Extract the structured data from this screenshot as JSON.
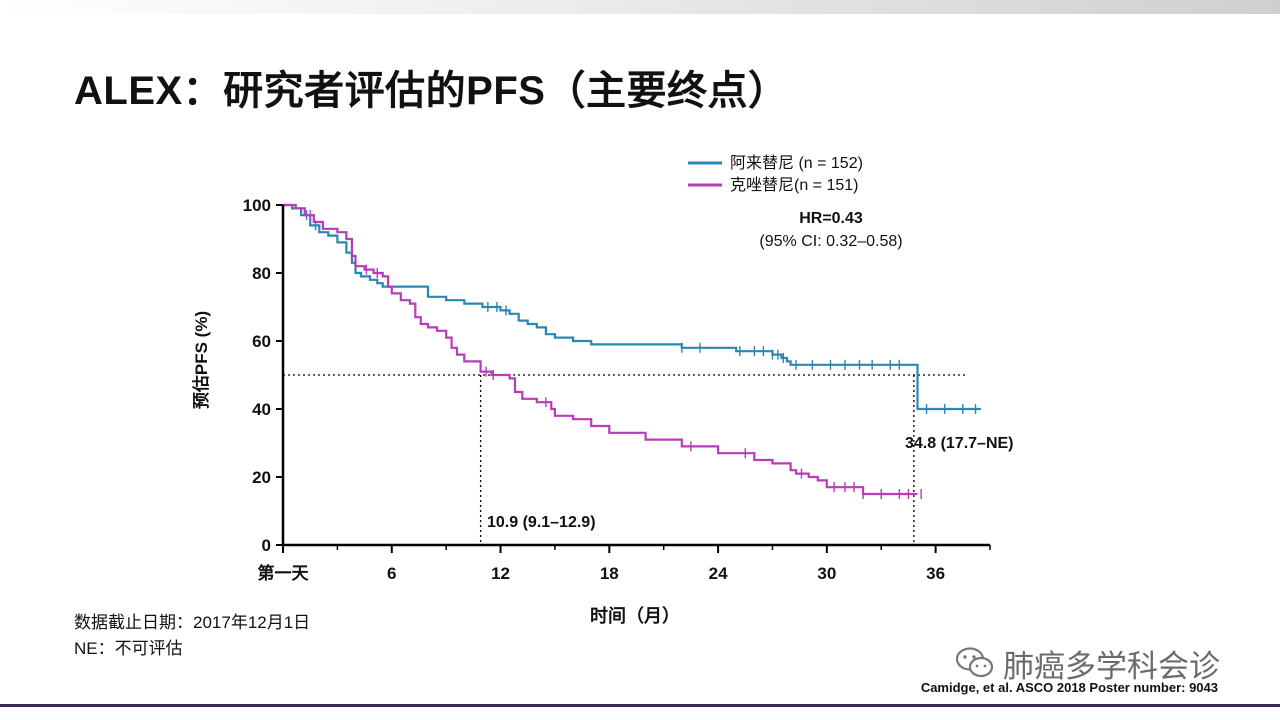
{
  "slide": {
    "title": "ALEX：研究者评估的PFS（主要终点）",
    "footnote_cutoff": "数据截止日期：2017年12月1日",
    "footnote_ne": "NE：不可评估",
    "citation": "Camidge, et al. ASCO 2018 Poster number: 9043",
    "watermark": "肺癌多学科会诊"
  },
  "chart_data": {
    "type": "line",
    "step": true,
    "xlabel": "时间（月）",
    "ylabel": "预估PFS (%)",
    "xlim": [
      0,
      39
    ],
    "ylim": [
      0,
      100
    ],
    "xticks": [
      {
        "value": 0,
        "label": "第一天"
      },
      {
        "value": 6,
        "label": "6"
      },
      {
        "value": 12,
        "label": "12"
      },
      {
        "value": 18,
        "label": "18"
      },
      {
        "value": 24,
        "label": "24"
      },
      {
        "value": 30,
        "label": "30"
      },
      {
        "value": 36,
        "label": "36"
      }
    ],
    "yticks": [
      0,
      20,
      40,
      60,
      80,
      100
    ],
    "legend_position": "top-right",
    "annotations": {
      "hr": "HR=0.43",
      "ci": "(95% CI: 0.32–0.58)",
      "median_crizotinib": "10.9 (9.1–12.9)",
      "median_alectinib": "34.8 (17.7–NE)"
    },
    "reference_lines": {
      "median_y": 50,
      "median_x_crizotinib": 10.9,
      "median_x_alectinib": 34.8
    },
    "series": [
      {
        "name": "阿来替尼 (n = 152)",
        "color": "#2a87b5",
        "x": [
          0,
          0.5,
          1,
          1.5,
          2,
          2.5,
          3,
          3.5,
          3.8,
          4,
          4.3,
          4.8,
          5.2,
          5.5,
          6,
          8,
          9,
          10,
          11,
          12,
          12.5,
          13,
          13.5,
          14,
          14.5,
          15,
          16,
          17,
          20,
          22,
          24,
          25,
          27,
          27.5,
          27.8,
          28,
          30,
          32,
          34.8,
          35,
          38.5
        ],
        "y": [
          100,
          99,
          97,
          94,
          92,
          91,
          89,
          86,
          83,
          80,
          79,
          78,
          77,
          76,
          76,
          73,
          72,
          71,
          70,
          69,
          68,
          66,
          65,
          64,
          62,
          61,
          60,
          59,
          59,
          58,
          58,
          57,
          56,
          55,
          54,
          53,
          53,
          53,
          53,
          40,
          40
        ],
        "censor_x": [
          1.3,
          1.8,
          11.3,
          11.8,
          12.3,
          22,
          23,
          25.2,
          26,
          26.5,
          27,
          27.3,
          27.6,
          28.3,
          29.2,
          30.2,
          31,
          31.8,
          32.5,
          33.5,
          34,
          35.5,
          36.5,
          37.5,
          38.2
        ]
      },
      {
        "name": "克唑替尼(n = 151)",
        "color": "#b83bb8",
        "x": [
          0,
          0.7,
          1.2,
          1.7,
          2.2,
          3,
          3.5,
          3.8,
          4,
          4.5,
          5,
          5.5,
          5.8,
          6,
          6.5,
          7,
          7.3,
          7.6,
          8,
          8.5,
          9,
          9.3,
          9.6,
          10,
          10.9,
          11.5,
          12.5,
          12.8,
          13.2,
          14,
          14.8,
          15,
          16,
          17,
          18,
          20,
          22,
          24,
          25,
          26,
          27,
          28,
          28.3,
          29,
          29.5,
          30,
          32,
          35
        ],
        "y": [
          100,
          99,
          97,
          95,
          93,
          92,
          90,
          85,
          82,
          81,
          80,
          79,
          76,
          74,
          72,
          71,
          67,
          65,
          64,
          63,
          61,
          58,
          56,
          54,
          51,
          50,
          49,
          45,
          43,
          42,
          40,
          38,
          37,
          35,
          33,
          31,
          29,
          27,
          27,
          25,
          24,
          22,
          21,
          20,
          19,
          17,
          15,
          15
        ],
        "censor_x": [
          1.5,
          4.6,
          5.2,
          11.2,
          11.6,
          14.5,
          22.5,
          25.5,
          28.6,
          30.4,
          31,
          31.5,
          32,
          33,
          34,
          34.5,
          35.2
        ]
      }
    ]
  }
}
